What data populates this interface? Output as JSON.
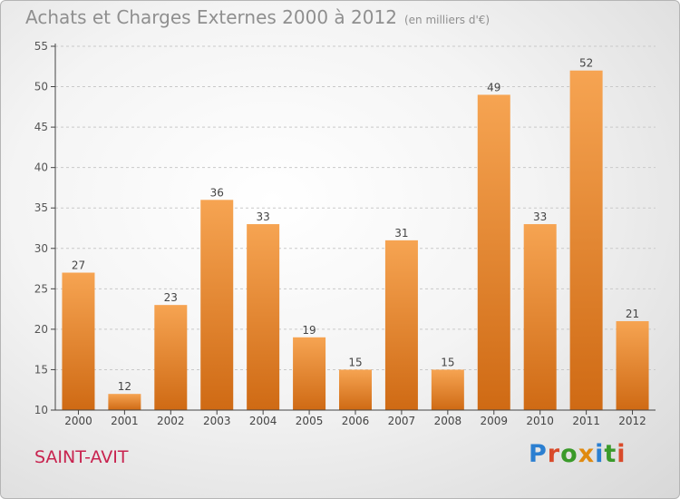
{
  "header": {
    "title": "Achats et Charges Externes 2000 à 2012",
    "subtitle": "(en milliers d'€)"
  },
  "commune": "SAINT-AVIT",
  "brand": {
    "name": "Proxiti",
    "letters": [
      "P",
      "r",
      "o",
      "x",
      "i",
      "t",
      "i"
    ],
    "colors": [
      "#2b7fd1",
      "#d94a2a",
      "#3a9a2a",
      "#e08a10",
      "#2b7fd1",
      "#3a9a2a",
      "#d94a2a"
    ]
  },
  "colors": {
    "bar_top": "#f6a452",
    "bar_bottom": "#cf6a14",
    "axis": "#444444",
    "grid": "#c9c9c9"
  },
  "chart_data": {
    "type": "bar",
    "categories": [
      "2000",
      "2001",
      "2002",
      "2003",
      "2004",
      "2005",
      "2006",
      "2007",
      "2008",
      "2009",
      "2010",
      "2011",
      "2012"
    ],
    "values": [
      27,
      12,
      23,
      36,
      33,
      19,
      15,
      31,
      15,
      49,
      33,
      52,
      21
    ],
    "ylim": [
      10,
      55
    ],
    "yticks": [
      10,
      15,
      20,
      25,
      30,
      35,
      40,
      45,
      50,
      55
    ],
    "grid": "horizontal dashed",
    "data_labels": true
  }
}
